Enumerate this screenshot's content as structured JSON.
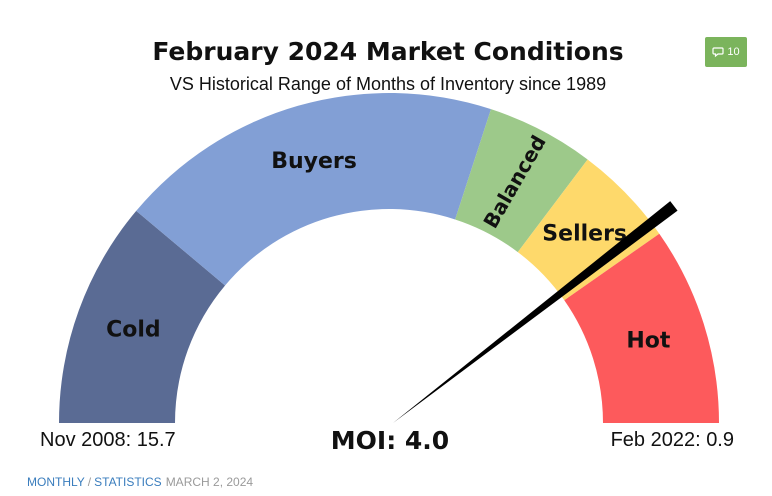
{
  "chart_data": {
    "type": "gauge",
    "title": "February 2024 Market Conditions",
    "subtitle": "VS Historical Range of Months of Inventory since 1989",
    "scale": {
      "max_label": "Nov 2008: 15.7",
      "max_value": 15.7,
      "min_label": "Feb 2022: 0.9",
      "min_value": 0.9
    },
    "segments": [
      {
        "label": "Cold",
        "color": "#5a6b94"
      },
      {
        "label": "Buyers",
        "color": "#829fd5"
      },
      {
        "label": "Balanced",
        "color": "#9dc98a"
      },
      {
        "label": "Sellers",
        "color": "#fed96b"
      },
      {
        "label": "Hot",
        "color": "#fd5a5c"
      }
    ],
    "needle": {
      "label": "MOI: 4.0",
      "value": 4.0
    }
  },
  "comments": {
    "count": "10"
  },
  "footer": {
    "category1": "MONTHLY",
    "separator": "/",
    "category2": "STATISTICS",
    "date": "MARCH 2, 2024"
  }
}
